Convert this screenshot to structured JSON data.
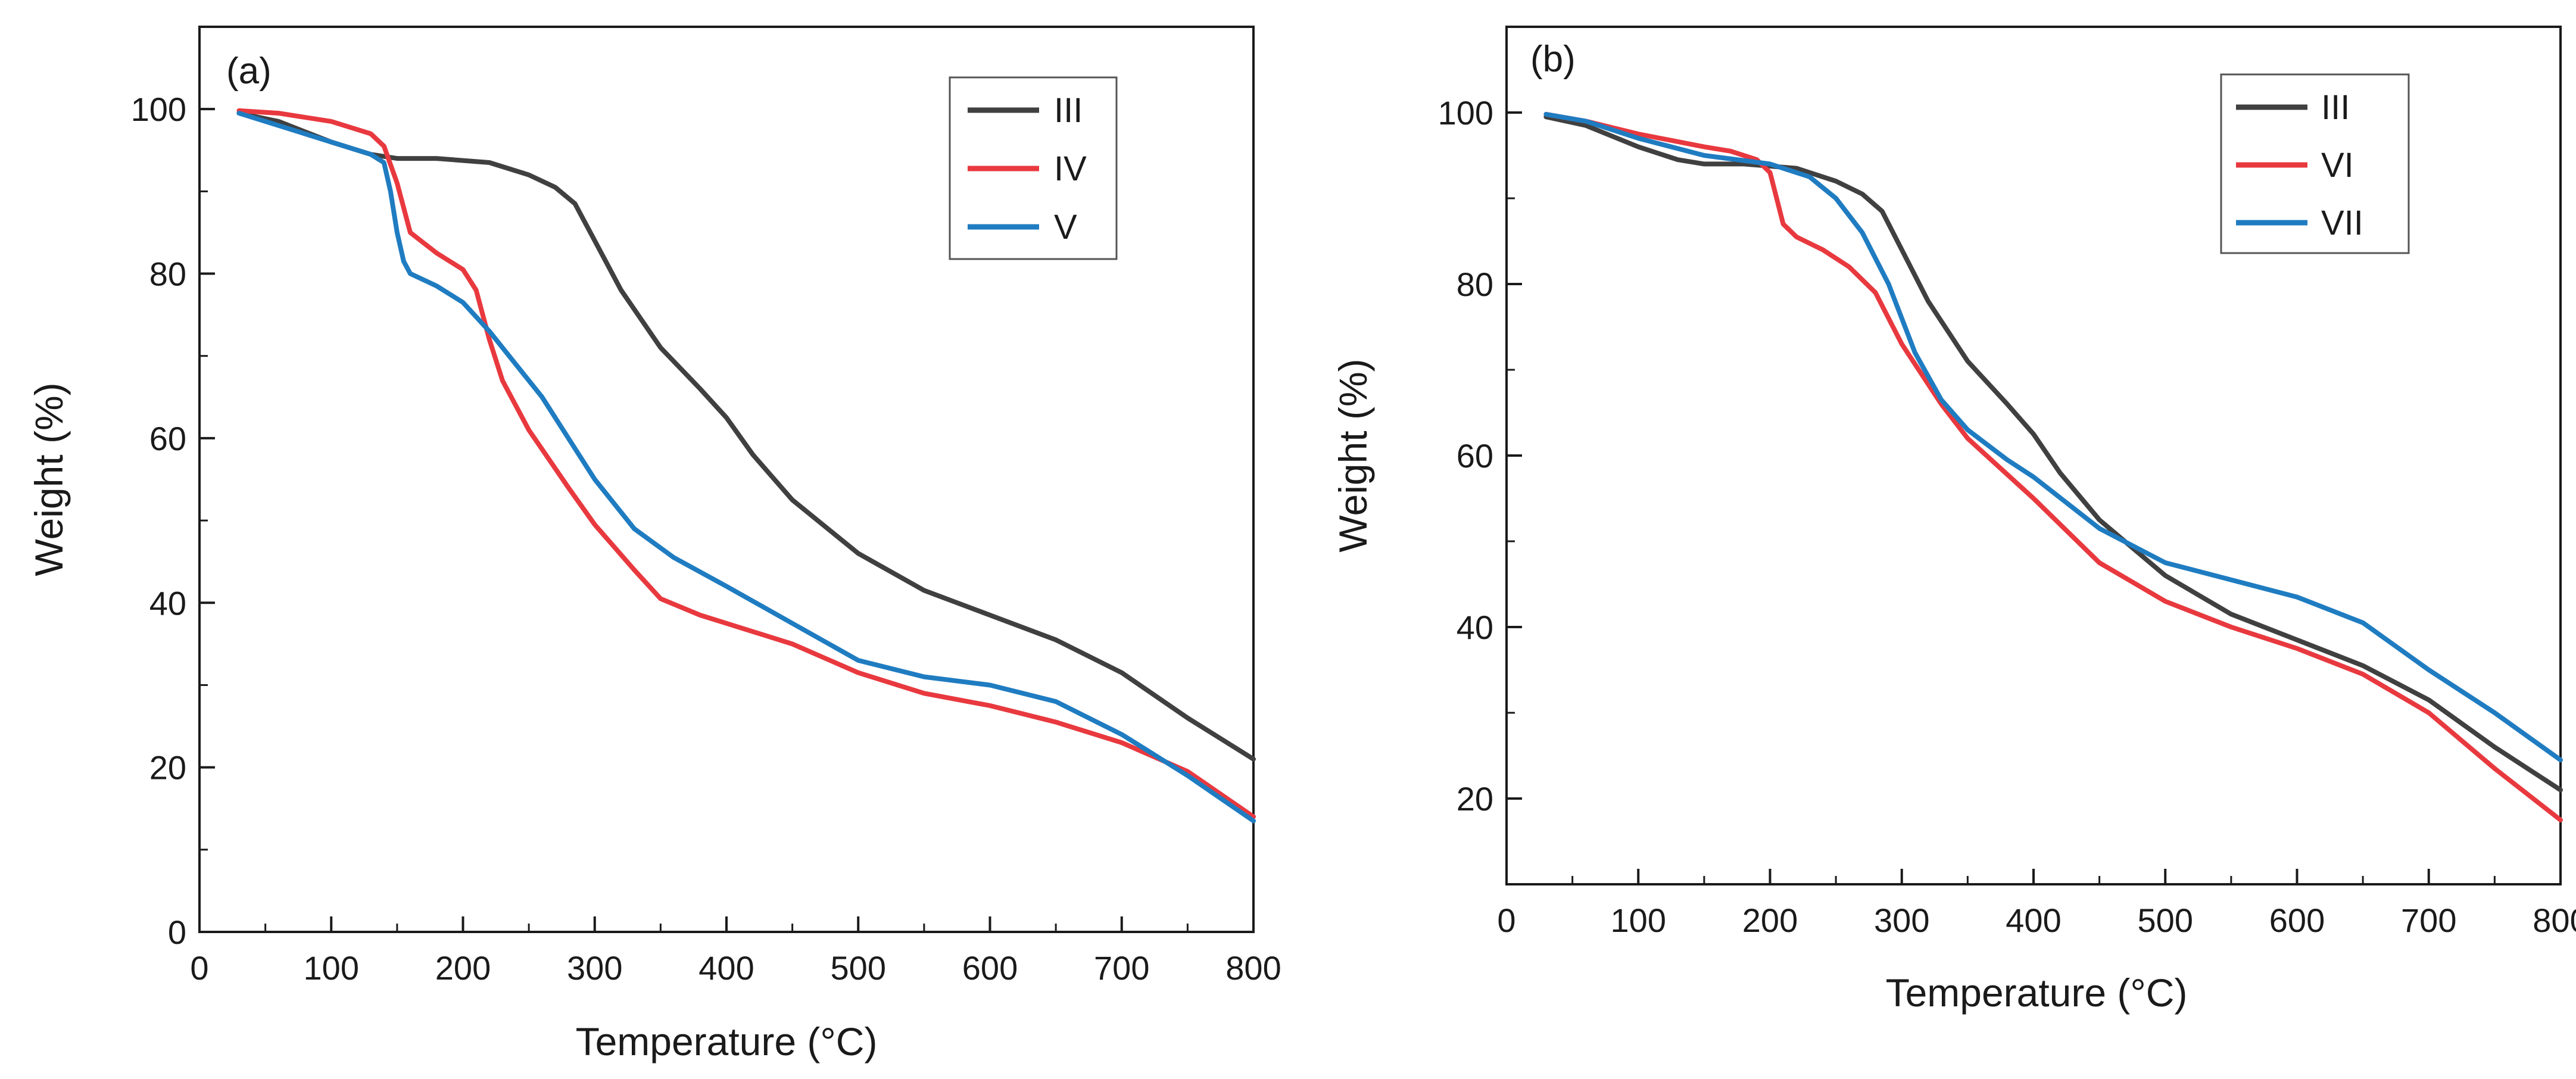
{
  "chart_data": [
    {
      "type": "line",
      "panel_label": "(a)",
      "xlabel": "Temperature (°C)",
      "ylabel": "Weight (%)",
      "xlim": [
        0,
        800
      ],
      "ylim": [
        0,
        110
      ],
      "xticks": [
        0,
        100,
        200,
        300,
        400,
        500,
        600,
        700,
        800
      ],
      "yticks": [
        0,
        20,
        40,
        60,
        80,
        100
      ],
      "grid": false,
      "legend_position": "top-right",
      "series": [
        {
          "name": "III",
          "color": "#404040",
          "x": [
            30,
            60,
            100,
            130,
            150,
            180,
            220,
            250,
            270,
            285,
            300,
            320,
            350,
            380,
            400,
            420,
            450,
            500,
            550,
            600,
            650,
            700,
            750,
            800
          ],
          "y": [
            99.5,
            98.5,
            96,
            94.5,
            94,
            94,
            93.5,
            92,
            90.5,
            88.5,
            84,
            78,
            71,
            66,
            62.5,
            58,
            52.5,
            46,
            41.5,
            38.5,
            35.5,
            31.5,
            26,
            21
          ]
        },
        {
          "name": "IV",
          "color": "#e8393f",
          "x": [
            30,
            60,
            100,
            130,
            140,
            150,
            160,
            180,
            200,
            210,
            220,
            230,
            250,
            280,
            300,
            330,
            350,
            380,
            400,
            450,
            500,
            550,
            600,
            650,
            700,
            750,
            800
          ],
          "y": [
            99.8,
            99.5,
            98.5,
            97,
            95.5,
            91,
            85,
            82.5,
            80.5,
            78,
            72,
            67,
            61,
            54,
            49.5,
            44,
            40.5,
            38.5,
            37.5,
            35,
            31.5,
            29,
            27.5,
            25.5,
            23,
            19.5,
            14
          ]
        },
        {
          "name": "V",
          "color": "#1f7cc1",
          "x": [
            30,
            60,
            100,
            130,
            140,
            145,
            150,
            155,
            160,
            180,
            200,
            220,
            240,
            260,
            280,
            300,
            330,
            360,
            400,
            450,
            500,
            550,
            600,
            650,
            700,
            750,
            800
          ],
          "y": [
            99.5,
            98,
            96,
            94.5,
            93.5,
            90,
            85,
            81.5,
            80,
            78.5,
            76.5,
            73,
            69,
            65,
            60,
            55,
            49,
            45.5,
            42,
            37.5,
            33,
            31,
            30,
            28,
            24,
            19,
            13.5
          ]
        }
      ]
    },
    {
      "type": "line",
      "panel_label": "(b)",
      "xlabel": "Temperature (°C)",
      "ylabel": "Weight (%)",
      "xlim": [
        0,
        800
      ],
      "ylim": [
        10,
        110
      ],
      "xticks": [
        0,
        100,
        200,
        300,
        400,
        500,
        600,
        700,
        800
      ],
      "yticks": [
        20,
        40,
        60,
        80,
        100
      ],
      "grid": false,
      "legend_position": "top-right",
      "series": [
        {
          "name": "III",
          "color": "#404040",
          "x": [
            30,
            60,
            100,
            130,
            150,
            180,
            220,
            250,
            270,
            285,
            300,
            320,
            350,
            380,
            400,
            420,
            450,
            500,
            550,
            600,
            650,
            700,
            750,
            800
          ],
          "y": [
            99.5,
            98.5,
            96,
            94.5,
            94,
            94,
            93.5,
            92,
            90.5,
            88.5,
            84,
            78,
            71,
            66,
            62.5,
            58,
            52.5,
            46,
            41.5,
            38.5,
            35.5,
            31.5,
            26,
            21
          ]
        },
        {
          "name": "VI",
          "color": "#e8393f",
          "x": [
            30,
            60,
            100,
            150,
            170,
            190,
            200,
            205,
            210,
            220,
            240,
            260,
            280,
            300,
            330,
            350,
            400,
            450,
            500,
            550,
            600,
            650,
            700,
            750,
            800
          ],
          "y": [
            99.8,
            99,
            97.5,
            96,
            95.5,
            94.5,
            93,
            90,
            87,
            85.5,
            84,
            82,
            79,
            73,
            66,
            62,
            55,
            47.5,
            43,
            40,
            37.5,
            34.5,
            30,
            23.5,
            17.5
          ]
        },
        {
          "name": "VII",
          "color": "#1f7cc1",
          "x": [
            30,
            60,
            100,
            150,
            200,
            230,
            250,
            270,
            290,
            310,
            330,
            350,
            380,
            400,
            450,
            500,
            550,
            600,
            650,
            700,
            750,
            800
          ],
          "y": [
            99.8,
            99,
            97,
            95,
            94,
            92.5,
            90,
            86,
            80,
            72,
            66.5,
            63,
            59.5,
            57.5,
            51.5,
            47.5,
            45.5,
            43.5,
            40.5,
            35,
            30,
            24.5
          ]
        }
      ]
    }
  ]
}
